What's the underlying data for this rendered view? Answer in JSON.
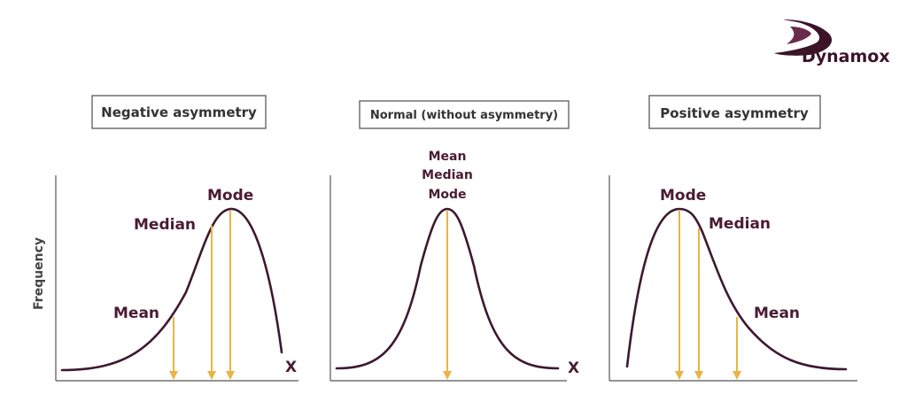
{
  "brand": {
    "name": "Dynamox",
    "color": "#3b1428",
    "logo_icon": "dynamox-swoosh-icon"
  },
  "colors": {
    "curve": "#3e1830",
    "marker": "#e8b545",
    "axis": "#555555",
    "label": "#4a1b32",
    "title_border": "#5a5a5a",
    "title_text": "#333333"
  },
  "y_axis_label": "Frequency",
  "panels": [
    {
      "id": "negative",
      "title": "Negative asymmetry",
      "x_axis_label": "X",
      "labels": {
        "mean": "Mean",
        "median": "Median",
        "mode": "Mode"
      }
    },
    {
      "id": "normal",
      "title": "Normal (without asymmetry)",
      "x_axis_label": "X",
      "labels": {
        "mean": "Mean",
        "median": "Median",
        "mode": "Mode"
      }
    },
    {
      "id": "positive",
      "title": "Positive asymmetry",
      "x_axis_label": "",
      "labels": {
        "mean": "Mean",
        "median": "Median",
        "mode": "Mode"
      }
    }
  ]
}
